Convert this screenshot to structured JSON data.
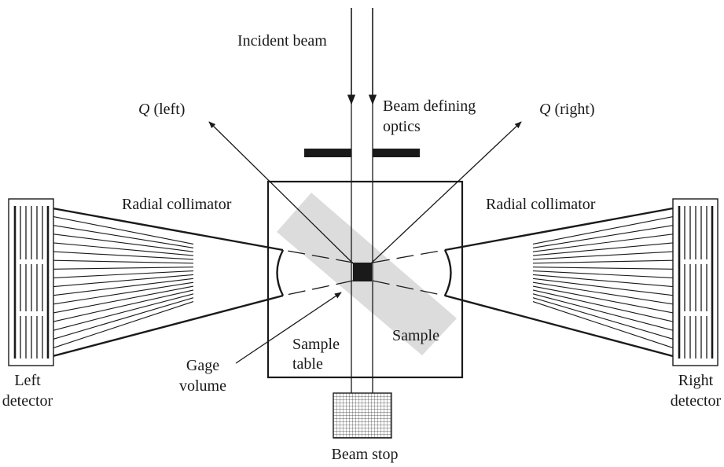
{
  "labels": {
    "incident_beam": "Incident beam",
    "q_left_symbol": "Q",
    "q_left_text": " (left)",
    "q_right_symbol": "Q",
    "q_right_text": " (right)",
    "beam_defining_line1": "Beam defining",
    "beam_defining_line2": "optics",
    "radial_collimator_left": "Radial collimator",
    "radial_collimator_right": "Radial collimator",
    "left_detector_line1": "Left",
    "left_detector_line2": "detector",
    "right_detector_line1": "Right",
    "right_detector_line2": "detector",
    "sample": "Sample",
    "sample_table_line1": "Sample",
    "sample_table_line2": "table",
    "gage_volume_line1": "Gage",
    "gage_volume_line2": "volume",
    "beam_stop": "Beam stop"
  },
  "colors": {
    "ink": "#1a1a1a",
    "sample_fill": "#dcdcdc"
  }
}
